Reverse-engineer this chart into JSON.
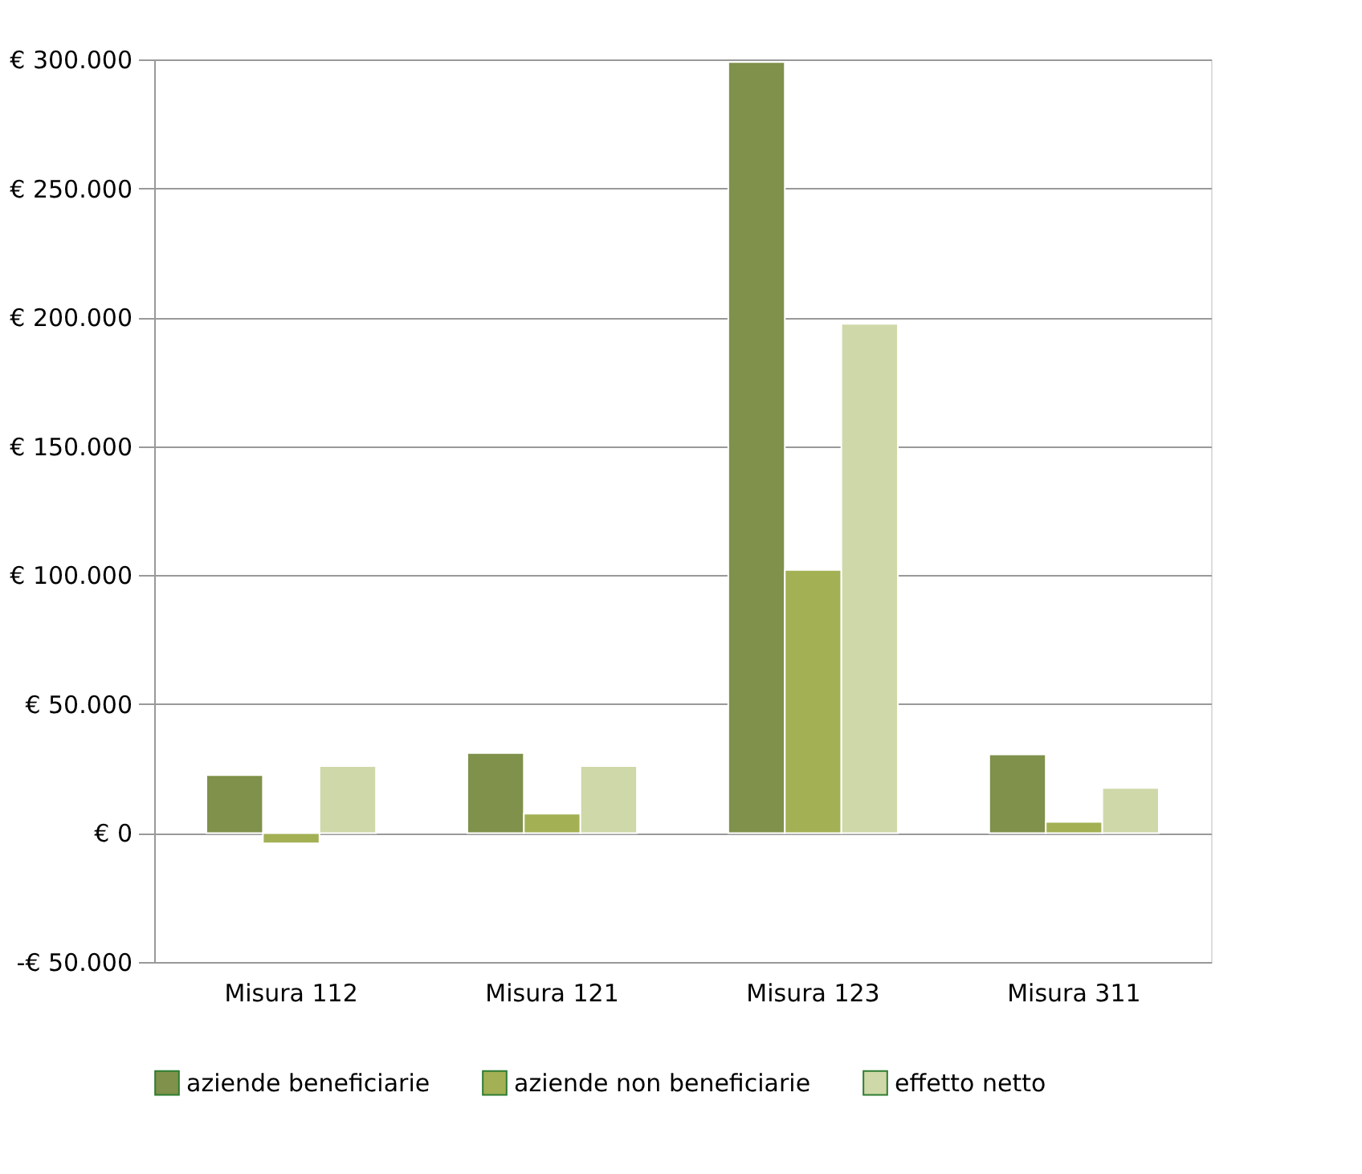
{
  "chart_data": {
    "type": "bar",
    "categories": [
      "Misura 112",
      "Misura 121",
      "Misura 123",
      "Misura 311"
    ],
    "series": [
      {
        "name": "aziende beneficiarie",
        "color": "#7f914a",
        "values": [
          22500,
          31000,
          299000,
          30500
        ]
      },
      {
        "name": "aziende non beneficiarie",
        "color": "#a3b054",
        "values": [
          -4000,
          7500,
          102000,
          4300
        ]
      },
      {
        "name": "effetto netto",
        "color": "#cfd8a8",
        "values": [
          26000,
          26000,
          197500,
          17500
        ]
      }
    ],
    "ylim": [
      -50000,
      300000
    ],
    "yticks": [
      {
        "value": -50000,
        "label": "-€ 50.000"
      },
      {
        "value": 0,
        "label": "€ 0"
      },
      {
        "value": 50000,
        "label": "€ 50.000"
      },
      {
        "value": 100000,
        "label": "€ 100.000"
      },
      {
        "value": 150000,
        "label": "€ 150.000"
      },
      {
        "value": 200000,
        "label": "€ 200.000"
      },
      {
        "value": 250000,
        "label": "€ 250.000"
      },
      {
        "value": 300000,
        "label": "€ 300.000"
      }
    ],
    "grid": "y",
    "legend": "bottom"
  }
}
